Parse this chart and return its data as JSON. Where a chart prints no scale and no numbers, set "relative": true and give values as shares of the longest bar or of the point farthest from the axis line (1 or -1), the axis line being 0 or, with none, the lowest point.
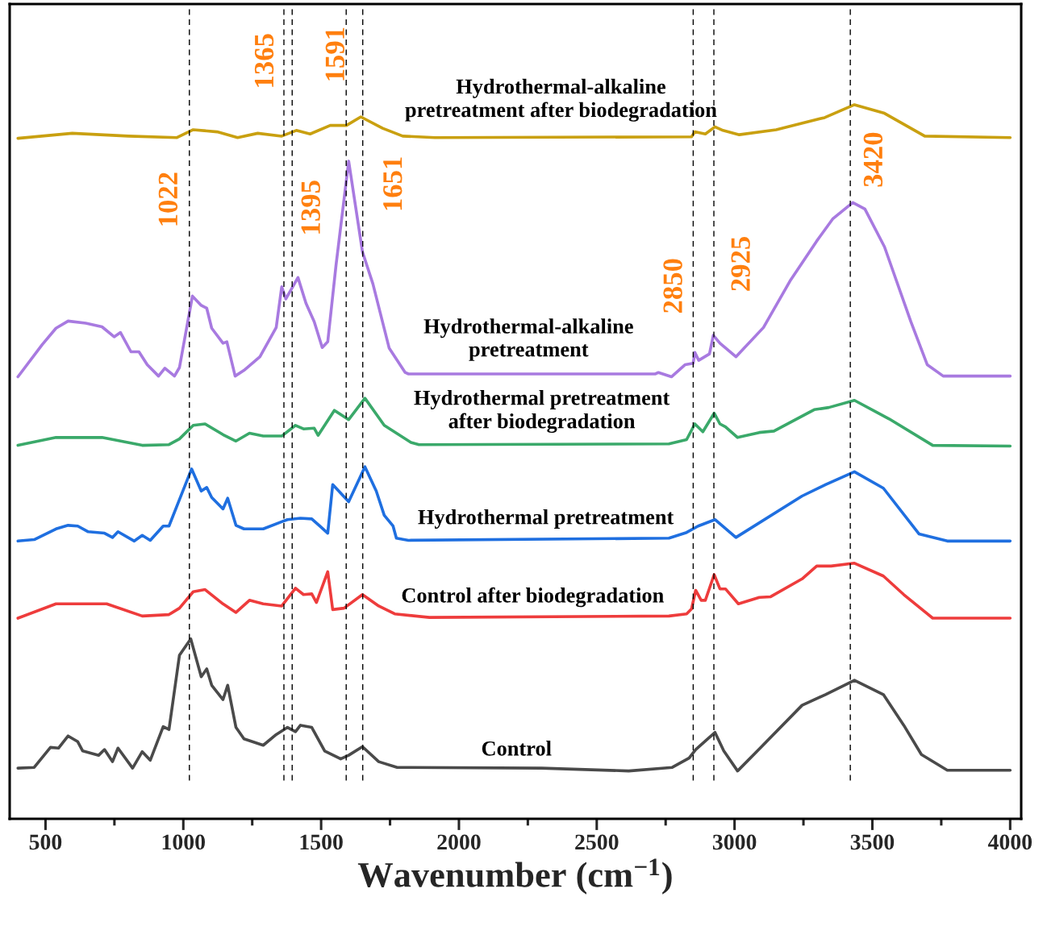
{
  "chart_data": {
    "type": "line",
    "relative": true,
    "xlabel": "Wavenumber (cm$^{−1}$)",
    "xlim": [
      370,
      4040
    ],
    "xticks": [
      500,
      1000,
      1500,
      2000,
      2500,
      3000,
      3500,
      4000
    ],
    "tick_labels": "x",
    "grid": false,
    "legend": false,
    "line_style": "solid",
    "series": [
      {
        "name": "Hydrothermal-alkaline\npretreatment after biodegradation",
        "color": "#c9a010",
        "x": [
          400,
          597,
          801,
          977,
          1036,
          1123,
          1197,
          1270,
          1357,
          1410,
          1460,
          1533,
          1592,
          1644,
          1723,
          1796,
          1913,
          2844,
          2856,
          2894,
          2929,
          2958,
          3017,
          3151,
          3327,
          3435,
          3544,
          3690,
          4000
        ],
        "values": [
          0.953,
          0.96,
          0.956,
          0.954,
          0.965,
          0.962,
          0.954,
          0.96,
          0.956,
          0.964,
          0.959,
          0.971,
          0.971,
          0.983,
          0.967,
          0.956,
          0.954,
          0.955,
          0.962,
          0.959,
          0.969,
          0.964,
          0.958,
          0.965,
          0.982,
          1.0,
          0.988,
          0.956,
          0.954
        ]
      },
      {
        "name": "Hydrothermal-alkaline\npretreatment",
        "color": "#a87ae0",
        "x": [
          400,
          488,
          538,
          582,
          646,
          705,
          749,
          772,
          810,
          839,
          869,
          910,
          933,
          968,
          986,
          1033,
          1065,
          1085,
          1103,
          1144,
          1158,
          1188,
          1220,
          1278,
          1337,
          1357,
          1372,
          1416,
          1445,
          1475,
          1504,
          1524,
          1554,
          1600,
          1650,
          1688,
          1747,
          1805,
          1817,
          2712,
          2724,
          2771,
          2821,
          2850,
          2856,
          2870,
          2909,
          2923,
          2947,
          3005,
          3105,
          3201,
          3298,
          3356,
          3429,
          3473,
          3544,
          3640,
          3699,
          3757,
          4000
        ],
        "values": [
          0.619,
          0.664,
          0.687,
          0.697,
          0.694,
          0.689,
          0.675,
          0.681,
          0.654,
          0.654,
          0.636,
          0.62,
          0.631,
          0.62,
          0.632,
          0.732,
          0.719,
          0.715,
          0.687,
          0.666,
          0.668,
          0.62,
          0.628,
          0.647,
          0.688,
          0.745,
          0.728,
          0.758,
          0.722,
          0.696,
          0.66,
          0.668,
          0.775,
          0.921,
          0.794,
          0.749,
          0.659,
          0.625,
          0.623,
          0.623,
          0.625,
          0.619,
          0.636,
          0.638,
          0.653,
          0.642,
          0.651,
          0.677,
          0.666,
          0.647,
          0.688,
          0.753,
          0.809,
          0.84,
          0.863,
          0.854,
          0.801,
          0.696,
          0.636,
          0.62,
          0.62
        ]
      },
      {
        "name": "Hydrothermal pretreatment\nafter biodegradation",
        "color": "#3aa96a",
        "x": [
          400,
          538,
          705,
          851,
          948,
          986,
          1036,
          1079,
          1144,
          1191,
          1240,
          1290,
          1357,
          1407,
          1436,
          1475,
          1489,
          1548,
          1600,
          1659,
          1729,
          1826,
          1855,
          2762,
          2826,
          2856,
          2885,
          2926,
          2947,
          2967,
          3011,
          3090,
          3143,
          3289,
          3342,
          3435,
          3561,
          3719,
          4000
        ],
        "values": [
          0.523,
          0.534,
          0.534,
          0.523,
          0.524,
          0.532,
          0.551,
          0.553,
          0.538,
          0.529,
          0.54,
          0.536,
          0.536,
          0.551,
          0.546,
          0.547,
          0.537,
          0.572,
          0.559,
          0.589,
          0.551,
          0.527,
          0.524,
          0.525,
          0.531,
          0.553,
          0.542,
          0.568,
          0.553,
          0.549,
          0.534,
          0.541,
          0.543,
          0.573,
          0.576,
          0.586,
          0.56,
          0.523,
          0.522
        ]
      },
      {
        "name": "Hydrothermal pretreatment",
        "color": "#1f6fe0",
        "x": [
          400,
          459,
          538,
          582,
          617,
          655,
          714,
          743,
          763,
          822,
          851,
          880,
          927,
          948,
          986,
          1030,
          1065,
          1085,
          1103,
          1144,
          1161,
          1191,
          1220,
          1290,
          1357,
          1378,
          1425,
          1466,
          1495,
          1524,
          1542,
          1600,
          1659,
          1700,
          1729,
          1761,
          1773,
          1817,
          2762,
          2826,
          2868,
          2929,
          3005,
          3245,
          3330,
          3435,
          3540,
          3669,
          3772,
          4000
        ],
        "values": [
          0.389,
          0.391,
          0.406,
          0.411,
          0.41,
          0.402,
          0.4,
          0.394,
          0.402,
          0.389,
          0.397,
          0.39,
          0.41,
          0.41,
          0.447,
          0.49,
          0.459,
          0.464,
          0.45,
          0.434,
          0.449,
          0.411,
          0.406,
          0.406,
          0.416,
          0.419,
          0.421,
          0.42,
          0.41,
          0.4,
          0.468,
          0.444,
          0.493,
          0.459,
          0.425,
          0.41,
          0.393,
          0.39,
          0.393,
          0.401,
          0.41,
          0.419,
          0.394,
          0.452,
          0.468,
          0.486,
          0.463,
          0.399,
          0.389,
          0.389
        ]
      },
      {
        "name": "Control after biodegradation",
        "color": "#ee3c3c",
        "x": [
          400,
          538,
          722,
          851,
          948,
          986,
          1036,
          1079,
          1144,
          1191,
          1240,
          1290,
          1357,
          1407,
          1436,
          1466,
          1483,
          1524,
          1542,
          1583,
          1650,
          1709,
          1767,
          1893,
          2762,
          2826,
          2844,
          2859,
          2879,
          2894,
          2926,
          2947,
          2967,
          3014,
          3090,
          3131,
          3245,
          3298,
          3350,
          3435,
          3540,
          3614,
          3719,
          4000
        ],
        "values": [
          0.281,
          0.301,
          0.301,
          0.284,
          0.286,
          0.295,
          0.318,
          0.321,
          0.301,
          0.289,
          0.306,
          0.301,
          0.298,
          0.323,
          0.314,
          0.315,
          0.303,
          0.346,
          0.293,
          0.295,
          0.314,
          0.298,
          0.287,
          0.282,
          0.284,
          0.287,
          0.294,
          0.32,
          0.306,
          0.306,
          0.342,
          0.322,
          0.322,
          0.301,
          0.31,
          0.311,
          0.336,
          0.354,
          0.354,
          0.358,
          0.34,
          0.314,
          0.281,
          0.281
        ]
      },
      {
        "name": "Control",
        "color": "#4a4a4a",
        "x": [
          400,
          459,
          518,
          547,
          582,
          617,
          635,
          693,
          714,
          743,
          763,
          816,
          851,
          880,
          927,
          948,
          986,
          1027,
          1065,
          1085,
          1103,
          1144,
          1161,
          1191,
          1220,
          1290,
          1337,
          1378,
          1407,
          1425,
          1466,
          1513,
          1571,
          1600,
          1650,
          1709,
          1776,
          2300,
          2616,
          2774,
          2835,
          2859,
          2900,
          2929,
          2961,
          3011,
          3090,
          3245,
          3330,
          3435,
          3540,
          3614,
          3678,
          3772,
          4000
        ],
        "values": [
          0.071,
          0.072,
          0.1,
          0.099,
          0.116,
          0.108,
          0.095,
          0.089,
          0.097,
          0.08,
          0.099,
          0.071,
          0.094,
          0.082,
          0.129,
          0.125,
          0.229,
          0.252,
          0.199,
          0.21,
          0.187,
          0.167,
          0.187,
          0.128,
          0.112,
          0.103,
          0.118,
          0.128,
          0.122,
          0.131,
          0.128,
          0.095,
          0.084,
          0.089,
          0.101,
          0.08,
          0.072,
          0.071,
          0.067,
          0.072,
          0.085,
          0.097,
          0.111,
          0.121,
          0.095,
          0.067,
          0.098,
          0.159,
          0.174,
          0.194,
          0.174,
          0.131,
          0.09,
          0.068,
          0.068
        ]
      }
    ],
    "ref_lines": [
      {
        "axis": "x",
        "value": 1022,
        "label": "1022",
        "color": "#000000",
        "line_style": "dashed"
      },
      {
        "axis": "x",
        "value": 1365,
        "label": "1365",
        "color": "#000000",
        "line_style": "dashed"
      },
      {
        "axis": "x",
        "value": 1395,
        "label": "1395",
        "color": "#000000",
        "line_style": "dashed"
      },
      {
        "axis": "x",
        "value": 1591,
        "label": "1591",
        "color": "#000000",
        "line_style": "dashed"
      },
      {
        "axis": "x",
        "value": 1651,
        "label": "1651",
        "color": "#000000",
        "line_style": "dashed"
      },
      {
        "axis": "x",
        "value": 2850,
        "label": "2850",
        "color": "#000000",
        "line_style": "dashed"
      },
      {
        "axis": "x",
        "value": 2925,
        "label": "2925",
        "color": "#000000",
        "line_style": "dashed"
      },
      {
        "axis": "x",
        "value": 3420,
        "label": "3420",
        "color": "#000000",
        "line_style": "dashed"
      }
    ]
  }
}
